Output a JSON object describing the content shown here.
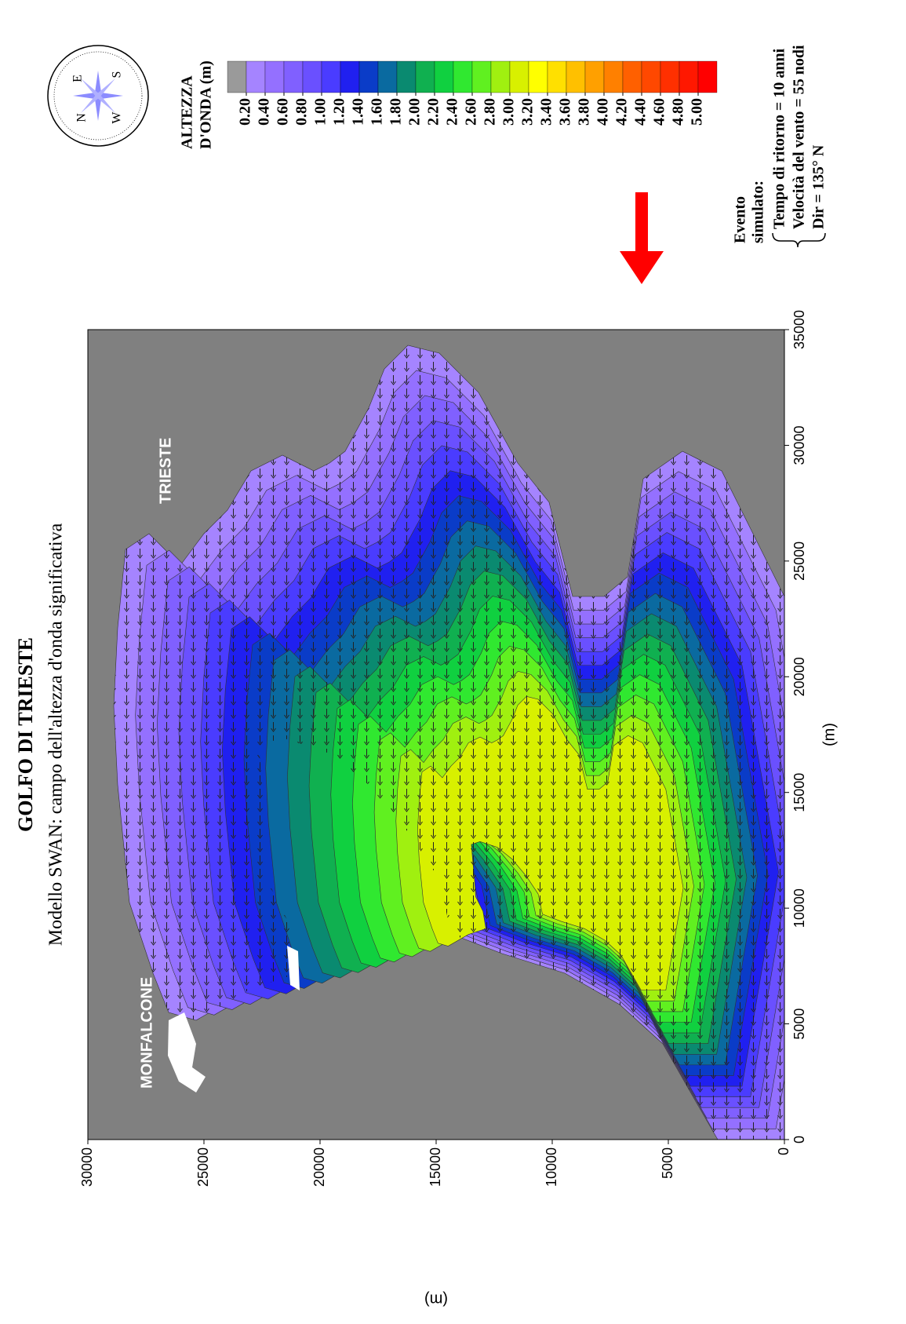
{
  "header": {
    "title": "GOLFO DI TRIESTE",
    "subtitle": "Modello SWAN: campo dell'altezza d'onda significativa"
  },
  "chart_data": {
    "type": "contour",
    "x_label": "(m)",
    "y_label": "(m)",
    "xlim": [
      0,
      35000
    ],
    "xticks": [
      0,
      5000,
      10000,
      15000,
      20000,
      25000,
      30000,
      35000
    ],
    "ylim": [
      0,
      30000
    ],
    "yticks": [
      0,
      5000,
      10000,
      15000,
      20000,
      25000,
      30000
    ],
    "places": [
      "MONFALCONE",
      "TRIESTE"
    ]
  },
  "colorbar": {
    "title": [
      "ALTEZZA",
      "D'ONDA (m)"
    ],
    "levels": [
      {
        "value": 0.2,
        "label": "0.20"
      },
      {
        "value": 0.4,
        "label": "0.40"
      },
      {
        "value": 0.6,
        "label": "0.60"
      },
      {
        "value": 0.8,
        "label": "0.80"
      },
      {
        "value": 1,
        "label": "1.00"
      },
      {
        "value": 1.2,
        "label": "1.20"
      },
      {
        "value": 1.4,
        "label": "1.40"
      },
      {
        "value": 1.6,
        "label": "1.60"
      },
      {
        "value": 1.8,
        "label": "1.80"
      },
      {
        "value": 2,
        "label": "2.00"
      },
      {
        "value": 2.2,
        "label": "2.20"
      },
      {
        "value": 2.4,
        "label": "2.40"
      },
      {
        "value": 2.6,
        "label": "2.60"
      },
      {
        "value": 2.8,
        "label": "2.80"
      },
      {
        "value": 3,
        "label": "3.00"
      },
      {
        "value": 3.2,
        "label": "3.20"
      },
      {
        "value": 3.4,
        "label": "3.40"
      },
      {
        "value": 3.6,
        "label": "3.60"
      },
      {
        "value": 3.8,
        "label": "3.80"
      },
      {
        "value": 4,
        "label": "4.00"
      },
      {
        "value": 4.2,
        "label": "4.20"
      },
      {
        "value": 4.4,
        "label": "4.40"
      },
      {
        "value": 4.6,
        "label": "4.60"
      },
      {
        "value": 4.8,
        "label": "4.80"
      },
      {
        "value": 5,
        "label": "5.00"
      }
    ],
    "colors": [
      "#9a9a9a",
      "#a584ff",
      "#9470ff",
      "#8060ff",
      "#6a50ff",
      "#4a3cff",
      "#2020f0",
      "#0a3cc8",
      "#0a6aa0",
      "#0a8a70",
      "#10b050",
      "#10d040",
      "#30e830",
      "#60f020",
      "#a0f010",
      "#d8f000",
      "#ffff00",
      "#ffe000",
      "#ffc000",
      "#ffa000",
      "#ff8000",
      "#ff6000",
      "#ff4800",
      "#ff3000",
      "#ff1800",
      "#ff0000"
    ]
  },
  "compass": [
    "N",
    "E",
    "S",
    "W"
  ],
  "event": {
    "heading": [
      "Evento",
      "simulato:"
    ],
    "lines": [
      "Tempo di ritorno = 10 anni",
      "Velocità del vento = 55 nodi",
      "Dir = 135° N"
    ]
  }
}
